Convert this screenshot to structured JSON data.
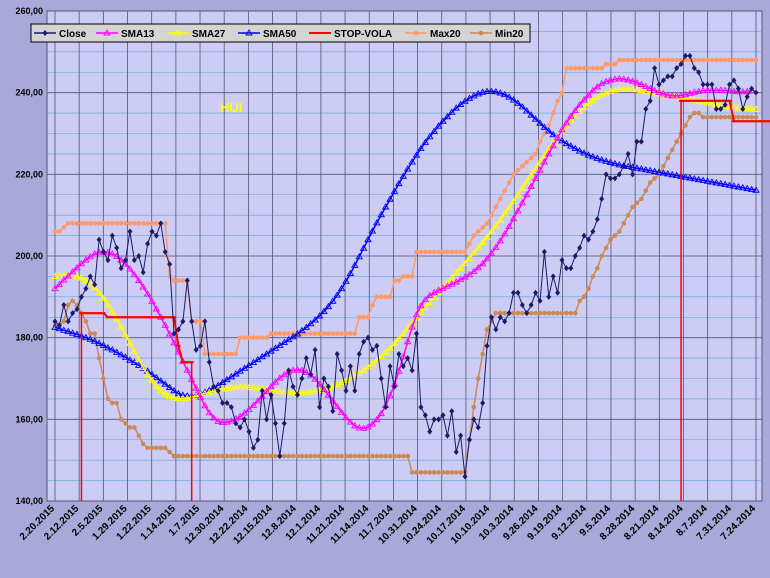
{
  "chart_data": {
    "type": "line",
    "title": "",
    "annotation": "HUI",
    "xlabel": "",
    "ylabel": "",
    "ylim": [
      140,
      260
    ],
    "yticks": [
      140,
      160,
      180,
      200,
      220,
      240,
      260
    ],
    "ytick_labels": [
      "140,00",
      "160,00",
      "180,00",
      "200,00",
      "220,00",
      "240,00",
      "260,00"
    ],
    "x_reversed": true,
    "xtick_labels": [
      "2.20.2015",
      "2.12.2015",
      "2.5.2015",
      "1.29.2015",
      "1.22.2015",
      "1.14.2015",
      "1.7.2015",
      "12.30.2014",
      "12.22.2014",
      "12.15.2014",
      "12.8.2014",
      "12.1.2014",
      "11.21.2014",
      "11.14.2014",
      "11.7.2014",
      "10.31.2014",
      "10.24.2014",
      "10.17.2014",
      "10.10.2014",
      "10.3.2014",
      "9.26.2014",
      "9.19.2014",
      "9.12.2014",
      "9.5.2014",
      "8.28.2014",
      "8.21.2014",
      "8.14.2014",
      "8.7.2014",
      "7.31.2014",
      "7.24.2014"
    ],
    "grid": true,
    "legend_position": "top",
    "series": [
      {
        "name": "Close",
        "color": "#1a1a66",
        "marker": "diamond",
        "values": [
          184,
          183,
          188,
          184,
          186,
          187,
          190,
          192,
          195,
          193,
          204,
          201,
          199,
          205,
          202,
          197,
          199,
          206,
          199,
          200,
          196,
          203,
          206,
          205,
          208,
          201,
          198,
          181,
          182,
          184,
          194,
          184,
          177,
          178,
          184,
          174,
          168,
          167,
          164,
          164,
          163,
          159,
          158,
          160,
          157,
          153,
          155,
          167,
          160,
          166,
          159,
          151,
          159,
          172,
          168,
          166,
          170,
          175,
          171,
          177,
          163,
          170,
          168,
          162,
          176,
          172,
          167,
          173,
          167,
          176,
          179,
          180,
          177,
          178,
          170,
          163,
          173,
          168,
          176,
          173,
          175,
          172,
          181,
          163,
          161,
          157,
          160,
          160,
          161,
          156,
          162,
          152,
          156,
          146,
          155,
          160,
          158,
          164,
          178,
          185,
          182,
          185,
          184,
          186,
          191,
          191,
          188,
          186,
          188,
          191,
          189,
          201,
          190,
          195,
          191,
          199,
          197,
          197,
          200,
          202,
          205,
          204,
          206,
          209,
          214,
          220,
          219,
          219,
          220,
          222,
          225,
          220,
          228,
          228,
          236,
          238,
          246,
          242,
          243,
          244,
          244,
          246,
          247,
          249,
          249,
          246,
          245,
          242,
          242,
          242,
          236,
          236,
          237,
          242,
          243,
          241,
          236,
          239,
          241,
          240
        ]
      },
      {
        "name": "SMA13",
        "color": "#ff00ff",
        "marker": "triangle",
        "values": [
          192.0,
          193.0,
          194.1,
          195.1,
          196.1,
          197.1,
          198.1,
          199.0,
          199.8,
          200.5,
          200.9,
          201.0,
          200.9,
          200.5,
          199.9,
          199.0,
          198.0,
          196.8,
          195.4,
          194.0,
          192.4,
          190.7,
          188.9,
          187.0,
          185.0,
          183.0,
          180.9,
          178.7,
          176.5,
          174.2,
          172.0,
          169.8,
          167.6,
          165.4,
          163.3,
          161.6,
          160.3,
          159.5,
          159.2,
          159.3,
          159.6,
          160.1,
          160.7,
          161.5,
          162.4,
          163.4,
          164.5,
          165.6,
          166.8,
          168.0,
          169.1,
          170.1,
          170.9,
          171.6,
          172.0,
          172.1,
          172.0,
          171.5,
          170.8,
          169.8,
          168.6,
          167.3,
          165.9,
          164.5,
          163.1,
          161.7,
          160.4,
          159.3,
          158.4,
          157.9,
          157.8,
          158.1,
          158.8,
          159.9,
          161.4,
          163.4,
          165.8,
          168.6,
          171.8,
          175.3,
          179.0,
          182.6,
          185.6,
          187.8,
          189.3,
          190.3,
          191.0,
          191.6,
          192.1,
          192.6,
          193.1,
          193.6,
          194.2,
          194.8,
          195.4,
          196.2,
          197.1,
          198.1,
          199.3,
          200.6,
          202.1,
          203.7,
          205.4,
          207.2,
          209.1,
          211.0,
          213.0,
          215.0,
          217.0,
          219.0,
          221.0,
          223.0,
          225.0,
          227.0,
          229.0,
          230.9,
          232.6,
          234.2,
          235.6,
          237.0,
          238.2,
          239.4,
          240.5,
          241.4,
          242.2,
          242.7,
          243.1,
          243.3,
          243.4,
          243.3,
          243.1,
          242.8,
          242.4,
          242.0,
          241.5,
          241.0,
          240.5,
          240.1,
          239.7,
          239.4,
          239.2,
          239.2,
          239.3,
          239.5,
          239.8,
          240.1,
          240.3,
          240.5,
          240.6,
          240.6,
          240.6,
          240.6,
          240.5,
          240.4,
          240.3,
          240.2,
          240.2,
          240.3,
          240.4
        ]
      },
      {
        "name": "SMA27",
        "color": "#ffff00",
        "marker": "triangle",
        "values": [
          195.0,
          195.2,
          195.3,
          195.3,
          195.2,
          195.0,
          194.6,
          194.0,
          193.2,
          192.2,
          191.0,
          189.6,
          188.0,
          186.3,
          184.5,
          182.6,
          180.6,
          178.6,
          176.6,
          174.6,
          172.7,
          171.0,
          169.5,
          168.1,
          167.0,
          166.2,
          165.6,
          165.2,
          165.1,
          165.1,
          165.2,
          165.4,
          165.7,
          166.0,
          166.3,
          166.6,
          166.9,
          167.2,
          167.4,
          167.6,
          167.7,
          167.8,
          167.9,
          167.9,
          167.8,
          167.7,
          167.6,
          167.5,
          167.3,
          167.1,
          166.9,
          166.8,
          166.7,
          166.6,
          166.5,
          166.5,
          166.5,
          166.6,
          166.7,
          166.9,
          167.1,
          167.4,
          167.7,
          168.1,
          168.5,
          169.0,
          169.5,
          170.1,
          170.7,
          171.3,
          172.0,
          172.8,
          173.6,
          174.5,
          175.4,
          176.4,
          177.4,
          178.5,
          179.7,
          180.9,
          182.2,
          183.5,
          184.8,
          186.1,
          187.4,
          188.6,
          189.8,
          191.0,
          192.2,
          193.4,
          194.6,
          195.8,
          197.0,
          198.2,
          199.4,
          200.7,
          202.0,
          203.3,
          204.6,
          206.0,
          207.4,
          208.8,
          210.3,
          211.8,
          213.4,
          215.0,
          216.6,
          218.2,
          219.8,
          221.4,
          223.0,
          224.6,
          226.2,
          227.7,
          229.2,
          230.6,
          231.9,
          233.1,
          234.3,
          235.4,
          236.4,
          237.3,
          238.1,
          238.8,
          239.4,
          239.9,
          240.3,
          240.6,
          240.8,
          240.9,
          240.9,
          240.8,
          240.7,
          240.5,
          240.3,
          240.1,
          239.9,
          239.7,
          239.5,
          239.3,
          239.1,
          238.9,
          238.7,
          238.5,
          238.3,
          238.1,
          237.9,
          237.7,
          237.5,
          237.3,
          237.1,
          236.9,
          236.7,
          236.5,
          236.4,
          236.3,
          236.2,
          236.1,
          236.0,
          235.9
        ]
      },
      {
        "name": "SMA50",
        "color": "#0000ff",
        "marker": "triangle",
        "values": [
          182.5,
          182.2,
          181.8,
          181.5,
          181.1,
          180.8,
          180.4,
          180.0,
          179.6,
          179.1,
          178.6,
          178.1,
          177.5,
          177.0,
          176.4,
          175.8,
          175.2,
          174.5,
          173.9,
          173.2,
          172.5,
          171.8,
          171.0,
          170.2,
          169.4,
          168.6,
          167.8,
          167.0,
          166.3,
          165.9,
          165.7,
          165.7,
          165.9,
          166.2,
          166.6,
          167.1,
          167.7,
          168.3,
          169.0,
          169.7,
          170.4,
          171.1,
          171.8,
          172.5,
          173.2,
          173.9,
          174.6,
          175.3,
          176.0,
          176.7,
          177.4,
          178.1,
          178.8,
          179.5,
          180.2,
          180.9,
          181.7,
          182.5,
          183.4,
          184.3,
          185.3,
          186.4,
          187.6,
          188.9,
          190.4,
          192.0,
          193.8,
          195.7,
          197.7,
          199.8,
          201.9,
          204.0,
          206.1,
          208.1,
          210.1,
          212.0,
          213.9,
          215.8,
          217.7,
          219.5,
          221.3,
          223.0,
          224.7,
          226.3,
          227.8,
          229.2,
          230.5,
          231.8,
          233.0,
          234.1,
          235.2,
          236.2,
          237.1,
          237.9,
          238.6,
          239.2,
          239.7,
          240.1,
          240.3,
          240.3,
          240.2,
          239.9,
          239.5,
          238.9,
          238.2,
          237.4,
          236.5,
          235.5,
          234.5,
          233.5,
          232.5,
          231.5,
          230.6,
          229.7,
          228.9,
          228.2,
          227.5,
          226.9,
          226.3,
          225.7,
          225.2,
          224.7,
          224.3,
          223.9,
          223.5,
          223.2,
          222.9,
          222.6,
          222.3,
          222.1,
          221.9,
          221.7,
          221.5,
          221.3,
          221.1,
          220.9,
          220.7,
          220.5,
          220.3,
          220.1,
          219.9,
          219.7,
          219.5,
          219.3,
          219.1,
          218.9,
          218.7,
          218.5,
          218.3,
          218.1,
          217.9,
          217.7,
          217.5,
          217.3,
          217.1,
          216.9,
          216.7,
          216.5,
          216.3,
          216.1
        ]
      },
      {
        "name": "STOP-VOLA",
        "color": "#ff0000",
        "marker": "dash",
        "values": [
          null,
          null,
          null,
          null,
          null,
          null,
          186,
          186,
          186,
          186,
          186,
          186,
          185,
          185,
          185,
          185,
          185,
          185,
          185,
          185,
          185,
          185,
          185,
          185,
          185,
          185,
          185,
          185,
          178,
          174,
          174,
          174,
          null,
          null,
          null,
          null,
          null,
          null,
          null,
          null,
          null,
          null,
          null,
          null,
          null,
          null,
          null,
          null,
          null,
          null,
          null,
          null,
          null,
          null,
          null,
          null,
          null,
          null,
          null,
          null,
          null,
          null,
          null,
          null,
          null,
          null,
          null,
          null,
          null,
          null,
          null,
          null,
          null,
          null,
          null,
          null,
          null,
          null,
          null,
          null,
          null,
          null,
          null,
          null,
          null,
          null,
          null,
          null,
          null,
          null,
          null,
          null,
          null,
          null,
          null,
          null,
          null,
          null,
          null,
          null,
          null,
          null,
          null,
          null,
          null,
          null,
          null,
          null,
          null,
          null,
          null,
          null,
          null,
          null,
          null,
          null,
          null,
          null,
          null,
          null,
          null,
          null,
          null,
          null,
          null,
          null,
          null,
          null,
          null,
          null,
          null,
          null,
          null,
          null,
          null,
          null,
          null,
          null,
          null,
          null,
          null,
          null,
          238,
          238,
          238,
          238,
          238,
          238,
          238,
          238,
          238,
          238,
          238,
          238,
          233,
          233,
          233,
          233,
          233,
          233,
          233,
          233,
          233,
          233,
          233,
          233
        ]
      },
      {
        "name": "Max20",
        "color": "#ff9966",
        "marker": "circle",
        "values": [
          206,
          206,
          207,
          208,
          208,
          208,
          208,
          208,
          208,
          208,
          208,
          208,
          208,
          208,
          208,
          208,
          208,
          208,
          208,
          208,
          208,
          208,
          208,
          208,
          208,
          208,
          195,
          194,
          194,
          194,
          194,
          184,
          184,
          184,
          176,
          176,
          176,
          176,
          176,
          176,
          176,
          176,
          180,
          180,
          180,
          180,
          180,
          180,
          180,
          181,
          181,
          181,
          181,
          181,
          181,
          181,
          181,
          181,
          181,
          181,
          181,
          181,
          181,
          181,
          181,
          181,
          181,
          181,
          181,
          185,
          185,
          185,
          188,
          190,
          190,
          190,
          190,
          194,
          194,
          195,
          195,
          195,
          201,
          201,
          201,
          201,
          201,
          201,
          201,
          201,
          201,
          201,
          201,
          201,
          203,
          205,
          206,
          207,
          208,
          210,
          212,
          214,
          216,
          218,
          220,
          221,
          222,
          223,
          224,
          225,
          228,
          230,
          232,
          235,
          238,
          240,
          246,
          246,
          246,
          246,
          246,
          246,
          246,
          246,
          246,
          247,
          247,
          247,
          248,
          248,
          248,
          248,
          248,
          248,
          248,
          248,
          248,
          248,
          248,
          248,
          248,
          248,
          248,
          248,
          248,
          248,
          248,
          248,
          248,
          248,
          248,
          248,
          248,
          248,
          248,
          248,
          248,
          248,
          248,
          248
        ]
      },
      {
        "name": "Min20",
        "color": "#cc8855",
        "marker": "circle",
        "values": [
          183,
          183,
          184,
          188,
          189,
          188,
          186,
          184,
          181,
          181,
          175,
          170,
          165,
          164,
          164,
          160,
          159,
          158,
          158,
          156,
          154,
          153,
          153,
          153,
          153,
          153,
          152,
          151,
          151,
          151,
          151,
          151,
          151,
          151,
          151,
          151,
          151,
          151,
          151,
          151,
          151,
          151,
          151,
          151,
          151,
          151,
          151,
          151,
          151,
          151,
          151,
          151,
          151,
          151,
          151,
          151,
          151,
          151,
          151,
          151,
          151,
          151,
          151,
          151,
          151,
          151,
          151,
          151,
          151,
          151,
          151,
          151,
          151,
          151,
          151,
          151,
          151,
          151,
          151,
          151,
          151,
          147,
          147,
          147,
          147,
          147,
          147,
          147,
          147,
          147,
          147,
          147,
          147,
          147,
          155,
          163,
          170,
          176,
          182,
          184,
          186,
          186,
          186,
          186,
          186,
          186,
          186,
          186,
          186,
          186,
          186,
          186,
          186,
          186,
          186,
          186,
          186,
          186,
          186,
          189,
          190,
          192,
          195,
          197,
          200,
          202,
          204,
          205,
          206,
          208,
          210,
          212,
          213,
          214,
          216,
          218,
          219,
          220,
          222,
          224,
          226,
          228,
          230,
          232,
          234,
          235,
          235,
          234,
          234,
          234,
          234,
          234,
          234,
          234,
          234,
          234,
          234,
          234,
          234,
          234
        ]
      }
    ]
  }
}
